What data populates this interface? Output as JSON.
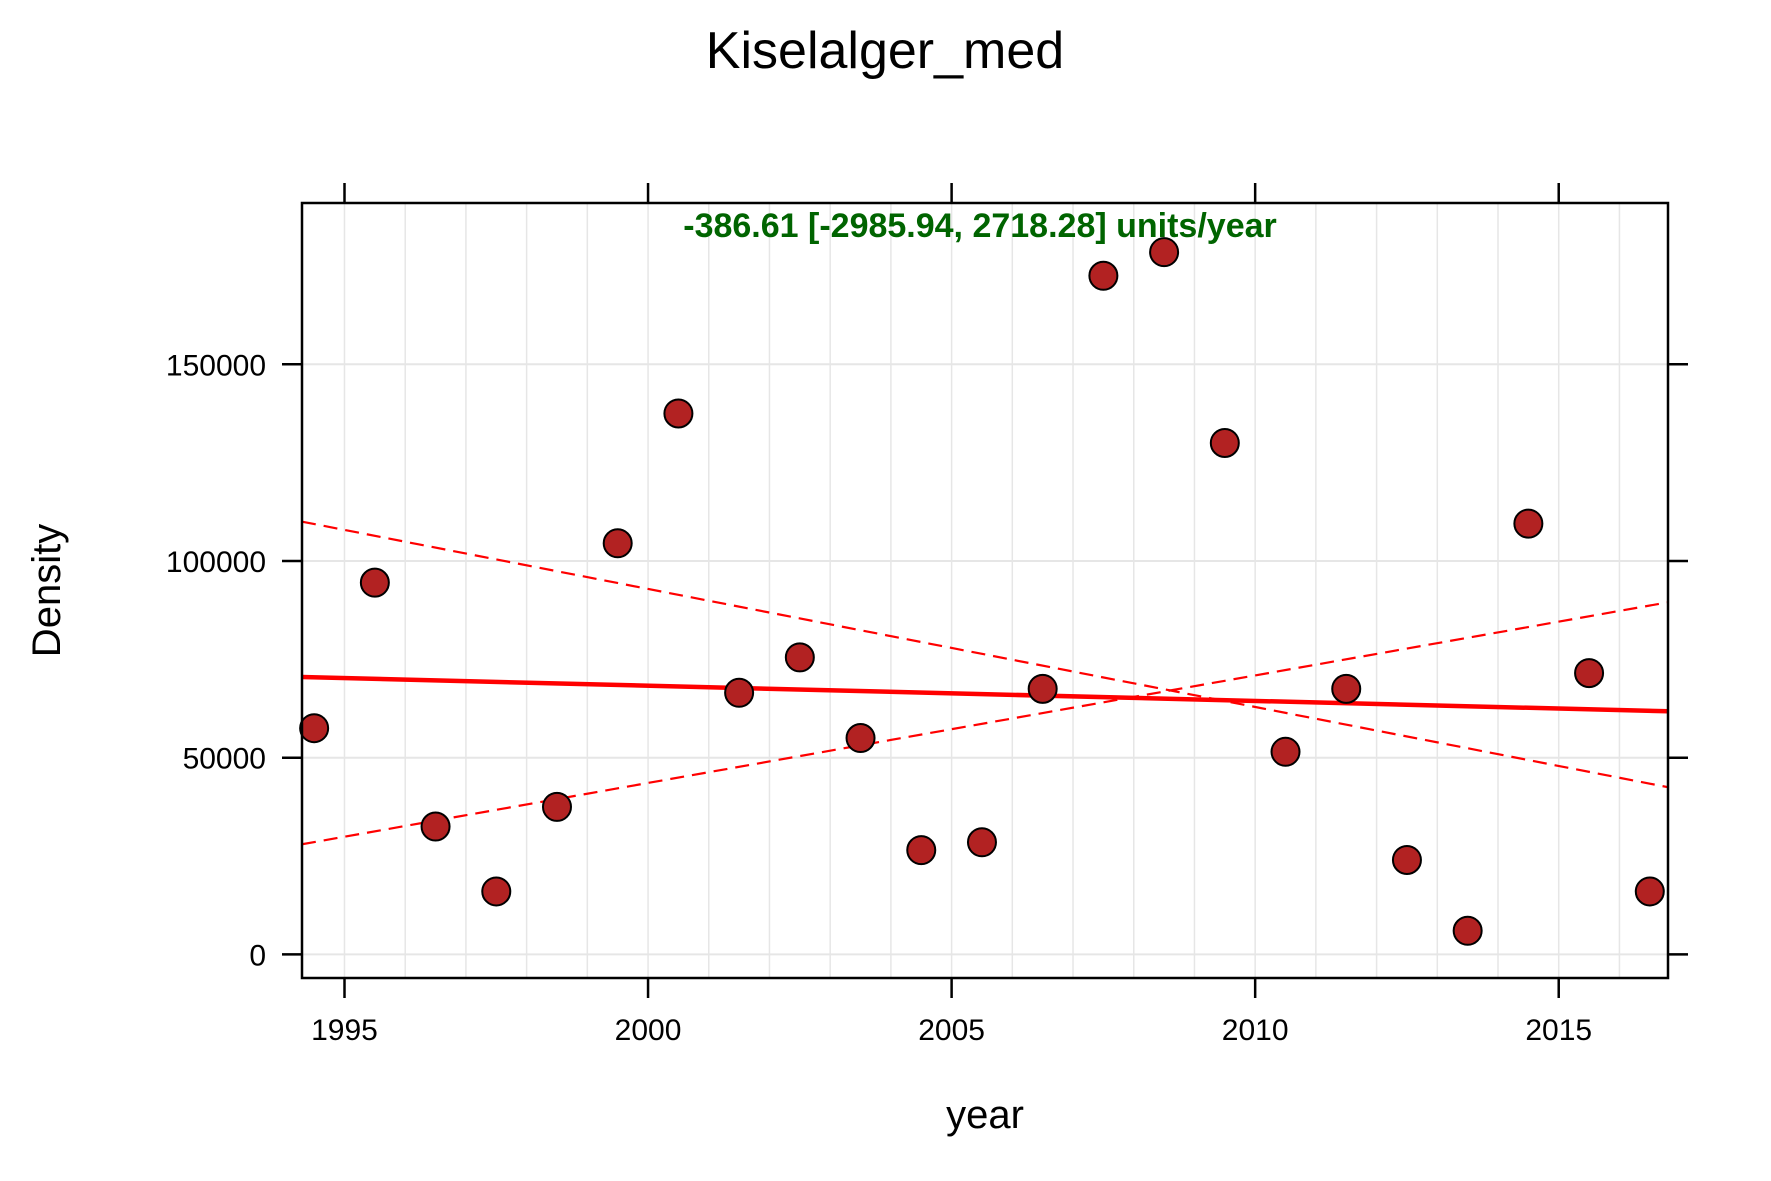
{
  "chart_data": {
    "type": "scatter",
    "title": "Kiselalger_med",
    "xlabel": "year",
    "ylabel": "Density",
    "annotation": "-386.61 [-2985.94, 2718.28] units/year",
    "xlim": [
      1994.3,
      2016.8
    ],
    "ylim": [
      -6000,
      191000
    ],
    "x_ticks": [
      1995,
      2000,
      2005,
      2010,
      2015
    ],
    "x_tick_labels": [
      "1995",
      "2000",
      "2005",
      "2010",
      "2015"
    ],
    "y_ticks": [
      0,
      50000,
      100000,
      150000
    ],
    "y_tick_labels": [
      "0",
      "50000",
      "100000",
      "150000"
    ],
    "grid": true,
    "points": [
      {
        "x": 1994.5,
        "y": 57500
      },
      {
        "x": 1995.5,
        "y": 94500
      },
      {
        "x": 1996.5,
        "y": 32500
      },
      {
        "x": 1997.5,
        "y": 16000
      },
      {
        "x": 1998.5,
        "y": 37500
      },
      {
        "x": 1999.5,
        "y": 104500
      },
      {
        "x": 2000.5,
        "y": 137500
      },
      {
        "x": 2001.5,
        "y": 66500
      },
      {
        "x": 2002.5,
        "y": 75500
      },
      {
        "x": 2003.5,
        "y": 55000
      },
      {
        "x": 2004.5,
        "y": 26500
      },
      {
        "x": 2005.5,
        "y": 28500
      },
      {
        "x": 2006.5,
        "y": 67500
      },
      {
        "x": 2007.5,
        "y": 172500
      },
      {
        "x": 2008.5,
        "y": 178500
      },
      {
        "x": 2009.5,
        "y": 130000
      },
      {
        "x": 2010.5,
        "y": 51500
      },
      {
        "x": 2011.5,
        "y": 67500
      },
      {
        "x": 2012.5,
        "y": 24000
      },
      {
        "x": 2013.5,
        "y": 6000
      },
      {
        "x": 2014.5,
        "y": 109500
      },
      {
        "x": 2015.5,
        "y": 71500
      },
      {
        "x": 2016.5,
        "y": 16000
      }
    ],
    "trend_line": {
      "x": [
        1994.3,
        2016.8
      ],
      "y": [
        70500,
        61800
      ]
    },
    "ci_lines": [
      {
        "x": [
          1994.3,
          2016.8
        ],
        "y": [
          110000,
          42500
        ]
      },
      {
        "x": [
          1994.3,
          2016.8
        ],
        "y": [
          28000,
          89500
        ]
      }
    ],
    "colors": {
      "point_fill": "#b22222",
      "point_stroke": "#000000",
      "trend": "#ff0000",
      "annotation": "#006400",
      "grid": "#e6e6e6"
    }
  }
}
